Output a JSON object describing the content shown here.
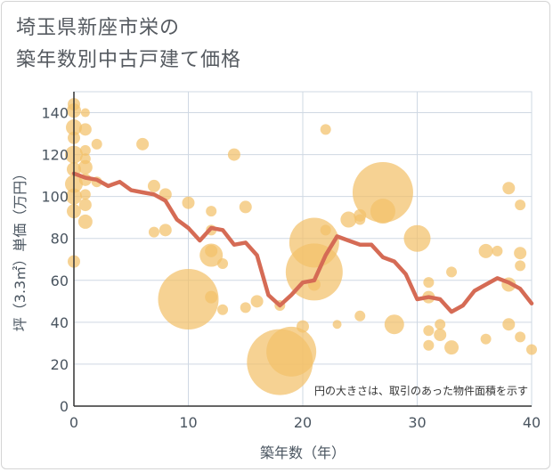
{
  "title_line1": "埼玉県新座市栄の",
  "title_line2": "築年数別中古戸建て価格",
  "chart_data": {
    "type": "scatter",
    "title": "埼玉県新座市栄の 築年数別中古戸建て価格",
    "xlabel": "築年数（年）",
    "ylabel": "坪（3.3㎡）単価（万円）",
    "xlim": [
      0,
      40
    ],
    "ylim": [
      0,
      150
    ],
    "xticks": [
      0,
      10,
      20,
      30,
      40
    ],
    "yticks": [
      0,
      20,
      40,
      60,
      80,
      100,
      120,
      140
    ],
    "grid": true,
    "note": "円の大きさは、取引のあった物件面積を示す",
    "colors": {
      "bubble": "#f3c069",
      "line": "#d56b55",
      "grid": "#cfd8e3"
    },
    "series": [
      {
        "type": "bubble",
        "points": [
          {
            "x": 0,
            "y": 144,
            "r": 7
          },
          {
            "x": 0,
            "y": 141,
            "r": 8
          },
          {
            "x": 0,
            "y": 133,
            "r": 9
          },
          {
            "x": 0,
            "y": 128,
            "r": 7
          },
          {
            "x": 0,
            "y": 120,
            "r": 10
          },
          {
            "x": 0,
            "y": 113,
            "r": 8
          },
          {
            "x": 0,
            "y": 106,
            "r": 10
          },
          {
            "x": 0,
            "y": 100,
            "r": 9
          },
          {
            "x": 0,
            "y": 93,
            "r": 8
          },
          {
            "x": 0,
            "y": 69,
            "r": 7
          },
          {
            "x": 1,
            "y": 140,
            "r": 5
          },
          {
            "x": 1,
            "y": 132,
            "r": 7
          },
          {
            "x": 1,
            "y": 122,
            "r": 6
          },
          {
            "x": 1,
            "y": 118,
            "r": 6
          },
          {
            "x": 1,
            "y": 114,
            "r": 8
          },
          {
            "x": 1,
            "y": 108,
            "r": 7
          },
          {
            "x": 1,
            "y": 101,
            "r": 6
          },
          {
            "x": 1,
            "y": 96,
            "r": 7
          },
          {
            "x": 1,
            "y": 88,
            "r": 8
          },
          {
            "x": 2,
            "y": 125,
            "r": 6
          },
          {
            "x": 2,
            "y": 107,
            "r": 6
          },
          {
            "x": 6,
            "y": 125,
            "r": 7
          },
          {
            "x": 7,
            "y": 105,
            "r": 7
          },
          {
            "x": 7,
            "y": 83,
            "r": 6
          },
          {
            "x": 8,
            "y": 101,
            "r": 7
          },
          {
            "x": 8,
            "y": 84,
            "r": 7
          },
          {
            "x": 10,
            "y": 97,
            "r": 7
          },
          {
            "x": 10,
            "y": 51,
            "r": 34
          },
          {
            "x": 12,
            "y": 93,
            "r": 6
          },
          {
            "x": 12,
            "y": 84,
            "r": 6
          },
          {
            "x": 12,
            "y": 72,
            "r": 13
          },
          {
            "x": 12,
            "y": 74,
            "r": 7
          },
          {
            "x": 12,
            "y": 52,
            "r": 7
          },
          {
            "x": 13,
            "y": 68,
            "r": 6
          },
          {
            "x": 13,
            "y": 46,
            "r": 6
          },
          {
            "x": 14,
            "y": 120,
            "r": 7
          },
          {
            "x": 15,
            "y": 95,
            "r": 7
          },
          {
            "x": 15,
            "y": 47,
            "r": 6
          },
          {
            "x": 16,
            "y": 50,
            "r": 7
          },
          {
            "x": 18,
            "y": 21,
            "r": 37
          },
          {
            "x": 18,
            "y": 48,
            "r": 6
          },
          {
            "x": 19,
            "y": 26,
            "r": 28
          },
          {
            "x": 20,
            "y": 38,
            "r": 7
          },
          {
            "x": 21,
            "y": 64,
            "r": 32
          },
          {
            "x": 21,
            "y": 78,
            "r": 28
          },
          {
            "x": 21,
            "y": 58,
            "r": 7
          },
          {
            "x": 22,
            "y": 84,
            "r": 6
          },
          {
            "x": 22,
            "y": 132,
            "r": 6
          },
          {
            "x": 23,
            "y": 39,
            "r": 5
          },
          {
            "x": 24,
            "y": 89,
            "r": 9
          },
          {
            "x": 25,
            "y": 91,
            "r": 7
          },
          {
            "x": 25,
            "y": 89,
            "r": 6
          },
          {
            "x": 25,
            "y": 43,
            "r": 6
          },
          {
            "x": 27,
            "y": 102,
            "r": 34
          },
          {
            "x": 27,
            "y": 93,
            "r": 14
          },
          {
            "x": 28,
            "y": 39,
            "r": 11
          },
          {
            "x": 30,
            "y": 80,
            "r": 15
          },
          {
            "x": 31,
            "y": 59,
            "r": 6
          },
          {
            "x": 31,
            "y": 52,
            "r": 7
          },
          {
            "x": 31,
            "y": 36,
            "r": 6
          },
          {
            "x": 31,
            "y": 29,
            "r": 6
          },
          {
            "x": 32,
            "y": 39,
            "r": 6
          },
          {
            "x": 32,
            "y": 34,
            "r": 7
          },
          {
            "x": 33,
            "y": 64,
            "r": 6
          },
          {
            "x": 33,
            "y": 28,
            "r": 8
          },
          {
            "x": 36,
            "y": 74,
            "r": 8
          },
          {
            "x": 36,
            "y": 32,
            "r": 6
          },
          {
            "x": 37,
            "y": 74,
            "r": 6
          },
          {
            "x": 38,
            "y": 104,
            "r": 7
          },
          {
            "x": 38,
            "y": 58,
            "r": 8
          },
          {
            "x": 38,
            "y": 39,
            "r": 7
          },
          {
            "x": 39,
            "y": 96,
            "r": 6
          },
          {
            "x": 39,
            "y": 73,
            "r": 7
          },
          {
            "x": 39,
            "y": 67,
            "r": 6
          },
          {
            "x": 39,
            "y": 33,
            "r": 6
          },
          {
            "x": 40,
            "y": 27,
            "r": 6
          }
        ]
      },
      {
        "type": "line",
        "x": [
          0,
          1,
          2,
          3,
          4,
          5,
          6,
          7,
          8,
          9,
          10,
          11,
          12,
          13,
          14,
          15,
          16,
          17,
          18,
          19,
          20,
          21,
          22,
          23,
          24,
          25,
          26,
          27,
          28,
          29,
          30,
          31,
          32,
          33,
          34,
          35,
          36,
          37,
          38,
          39,
          40
        ],
        "y": [
          111,
          109,
          108,
          105,
          107,
          103,
          102,
          101,
          98,
          89,
          85,
          79,
          85,
          84,
          77,
          78,
          72,
          53,
          48,
          53,
          59,
          60,
          72,
          81,
          79,
          77,
          77,
          71,
          69,
          63,
          51,
          52,
          51,
          45,
          48,
          55,
          58,
          61,
          59,
          56,
          49
        ]
      }
    ]
  }
}
